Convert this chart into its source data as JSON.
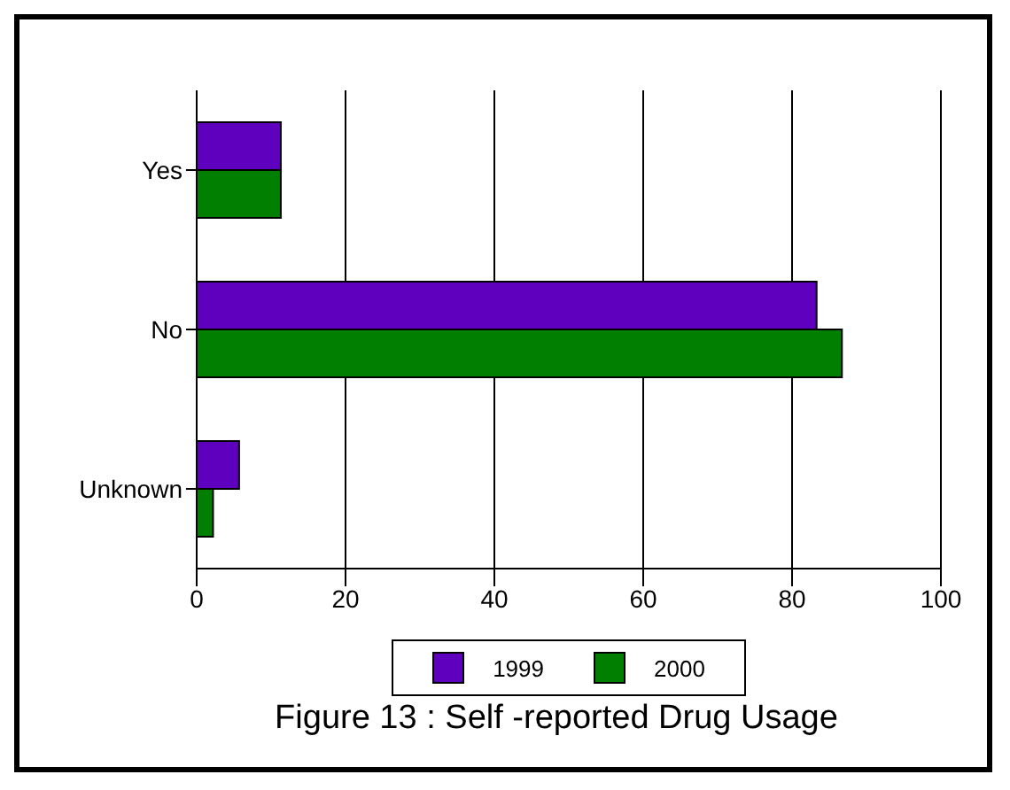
{
  "chart_data": {
    "type": "bar",
    "orientation": "horizontal",
    "title": "Figure 13 : Self -reported Drug Usage",
    "categories": [
      "Yes",
      "No",
      "Unknown"
    ],
    "series": [
      {
        "name": "1999",
        "color": "#5f00bf",
        "values": [
          11.3,
          83.3,
          5.7
        ]
      },
      {
        "name": "2000",
        "color": "#007f00",
        "values": [
          11.3,
          86.7,
          2.2
        ]
      }
    ],
    "xlim": [
      0,
      100
    ],
    "xticks": [
      0,
      20,
      40,
      60,
      80,
      100
    ],
    "grid": "x",
    "legend": "bottom"
  }
}
